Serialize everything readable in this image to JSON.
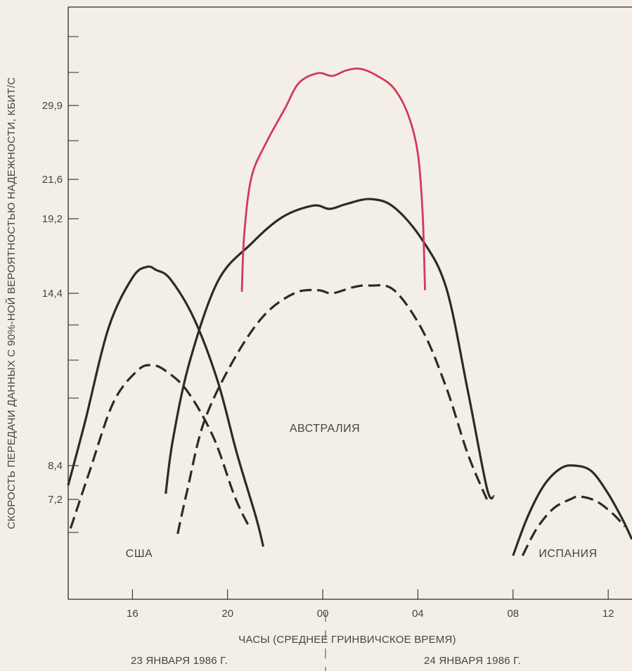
{
  "chart_data": {
    "type": "line",
    "title": "",
    "xlabel": "ЧАСЫ (СРЕДНЕЕ ГРИНВИЧСКОЕ ВРЕМЯ)",
    "ylabel": "СКОРОСТЬ ПЕРЕДАЧИ ДАННЫХ С 90%-НОЙ ВЕРОЯТНОСТЬЮ НАДЕЖНОСТИ, КБИТ/С",
    "x_unit": "hours (continuous, 24 = 00 of next day)",
    "xlim": [
      13.3,
      37.0
    ],
    "x_ticks": [
      {
        "x": 16,
        "label": "16"
      },
      {
        "x": 20,
        "label": "20"
      },
      {
        "x": 24,
        "label": "00"
      },
      {
        "x": 28,
        "label": "04"
      },
      {
        "x": 32,
        "label": "08"
      },
      {
        "x": 36,
        "label": "12"
      }
    ],
    "y_ticks_labeled": [
      {
        "y": 7.2,
        "label": "7,2"
      },
      {
        "y": 8.4,
        "label": "8,4"
      },
      {
        "y": 14.4,
        "label": "14,4"
      },
      {
        "y": 19.2,
        "label": "19,2"
      },
      {
        "y": 21.6,
        "label": "21,6"
      },
      {
        "y": 29.9,
        "label": "29,9"
      }
    ],
    "dates": {
      "left": "23 ЯНВАРЯ 1986 Г.",
      "right": "24 ЯНВАРЯ 1986 Г."
    },
    "region_labels": [
      "США",
      "АВСТРАЛИЯ",
      "ИСПАНИЯ"
    ],
    "colors": {
      "background": "#f3efe6",
      "solid": "#2b2b2b",
      "dashed": "#2b2b2b",
      "highlight": "#d23a5c"
    },
    "series": [
      {
        "style": "solid",
        "points": [
          [
            13.3,
            7.7
          ],
          [
            14.0,
            9.9
          ],
          [
            15.0,
            13.2
          ],
          [
            16.0,
            15.4
          ],
          [
            16.6,
            16.1
          ],
          [
            17.0,
            15.9
          ],
          [
            17.6,
            15.3
          ],
          [
            18.6,
            13.5
          ],
          [
            19.6,
            11.3
          ],
          [
            20.4,
            8.8
          ],
          [
            21.2,
            6.2
          ],
          [
            21.5,
            4.6
          ]
        ]
      },
      {
        "style": "dashed",
        "points": [
          [
            13.4,
            5.6
          ],
          [
            14.2,
            8.2
          ],
          [
            15.2,
            10.6
          ],
          [
            16.2,
            11.7
          ],
          [
            16.8,
            11.9
          ],
          [
            17.4,
            11.7
          ],
          [
            18.3,
            11.0
          ],
          [
            19.4,
            9.4
          ],
          [
            20.3,
            7.3
          ],
          [
            20.9,
            5.7
          ]
        ]
      },
      {
        "style": "solid",
        "points": [
          [
            17.4,
            7.4
          ],
          [
            17.7,
            9.3
          ],
          [
            18.4,
            12.0
          ],
          [
            19.6,
            15.2
          ],
          [
            21.0,
            17.6
          ],
          [
            22.3,
            19.3
          ],
          [
            23.6,
            20.0
          ],
          [
            24.3,
            19.8
          ],
          [
            25.0,
            20.1
          ],
          [
            26.0,
            20.4
          ],
          [
            27.0,
            19.9
          ],
          [
            28.2,
            17.8
          ],
          [
            29.2,
            14.7
          ],
          [
            30.1,
            11.0
          ],
          [
            30.9,
            7.6
          ],
          [
            31.2,
            7.3
          ]
        ]
      },
      {
        "style": "dashed",
        "points": [
          [
            17.9,
            5.3
          ],
          [
            18.3,
            7.5
          ],
          [
            19.0,
            9.9
          ],
          [
            20.2,
            12.0
          ],
          [
            21.5,
            13.6
          ],
          [
            22.8,
            14.4
          ],
          [
            23.8,
            14.6
          ],
          [
            24.4,
            14.4
          ],
          [
            25.3,
            14.8
          ],
          [
            26.0,
            14.9
          ],
          [
            27.0,
            14.6
          ],
          [
            28.2,
            13.1
          ],
          [
            29.2,
            11.1
          ],
          [
            30.1,
            8.8
          ],
          [
            30.9,
            7.2
          ]
        ]
      },
      {
        "style": "solid",
        "points": [
          [
            32.0,
            4.1
          ],
          [
            32.6,
            6.2
          ],
          [
            33.3,
            7.7
          ],
          [
            34.0,
            8.3
          ],
          [
            34.6,
            8.4
          ],
          [
            35.3,
            8.2
          ],
          [
            36.0,
            7.4
          ],
          [
            36.6,
            6.1
          ],
          [
            37.0,
            5.0
          ]
        ]
      },
      {
        "style": "dashed",
        "points": [
          [
            32.4,
            4.1
          ],
          [
            33.0,
            5.6
          ],
          [
            33.7,
            6.7
          ],
          [
            34.4,
            7.2
          ],
          [
            34.8,
            7.3
          ],
          [
            35.5,
            7.1
          ],
          [
            36.2,
            6.4
          ],
          [
            36.7,
            5.7
          ]
        ]
      },
      {
        "style": "highlight",
        "points": [
          [
            20.6,
            14.5
          ],
          [
            20.7,
            18.2
          ],
          [
            21.0,
            21.8
          ],
          [
            21.6,
            25.6
          ],
          [
            22.4,
            29.5
          ],
          [
            23.0,
            31.5
          ],
          [
            23.8,
            32.2
          ],
          [
            24.4,
            32.0
          ],
          [
            25.0,
            32.4
          ],
          [
            25.6,
            32.5
          ],
          [
            26.3,
            32.0
          ],
          [
            27.0,
            31.1
          ],
          [
            27.6,
            28.8
          ],
          [
            28.0,
            24.5
          ],
          [
            28.2,
            19.5
          ],
          [
            28.3,
            14.6
          ]
        ]
      }
    ]
  }
}
